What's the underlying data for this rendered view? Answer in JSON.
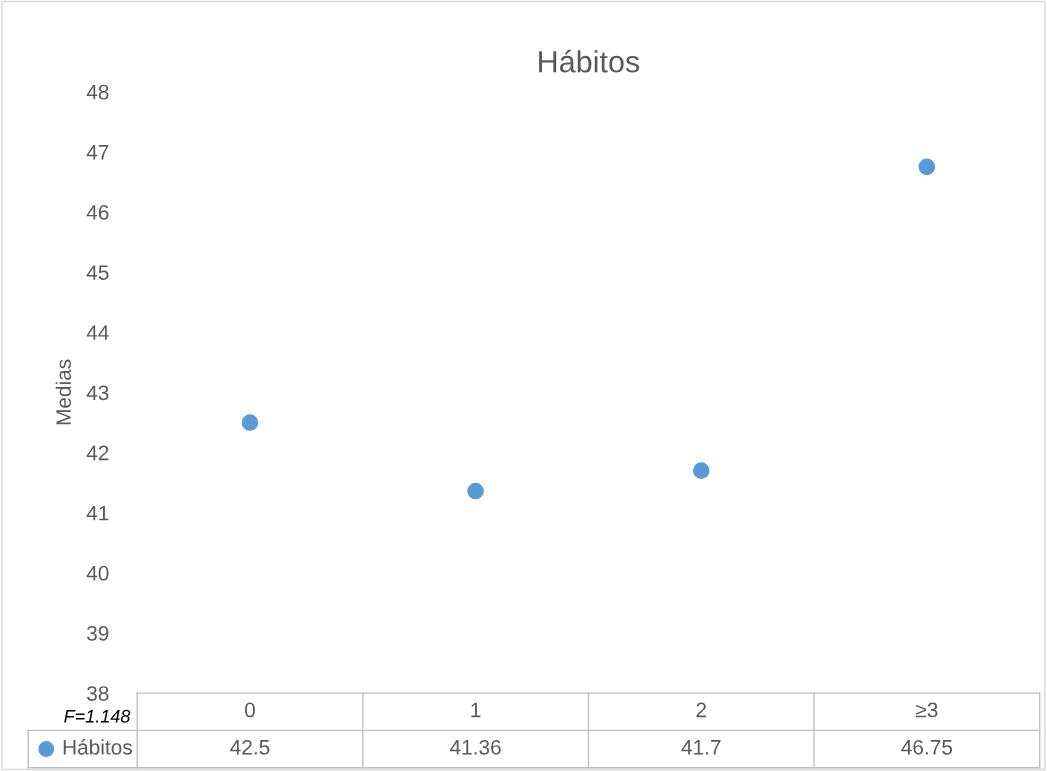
{
  "chart_data": {
    "type": "scatter",
    "title": "Hábitos",
    "ylabel": "Medias",
    "categories": [
      "0",
      "1",
      "2",
      "≥3"
    ],
    "series": [
      {
        "name": "Hábitos",
        "color": "#5b9bd5",
        "values": [
          42.5,
          41.36,
          41.7,
          46.75
        ]
      }
    ],
    "ylim": [
      38,
      48
    ],
    "yticks": [
      38,
      39,
      40,
      41,
      42,
      43,
      44,
      45,
      46,
      47,
      48
    ],
    "data_labels": true,
    "marker": "circle",
    "grid": false,
    "annotations": [
      "F=1.148"
    ]
  }
}
